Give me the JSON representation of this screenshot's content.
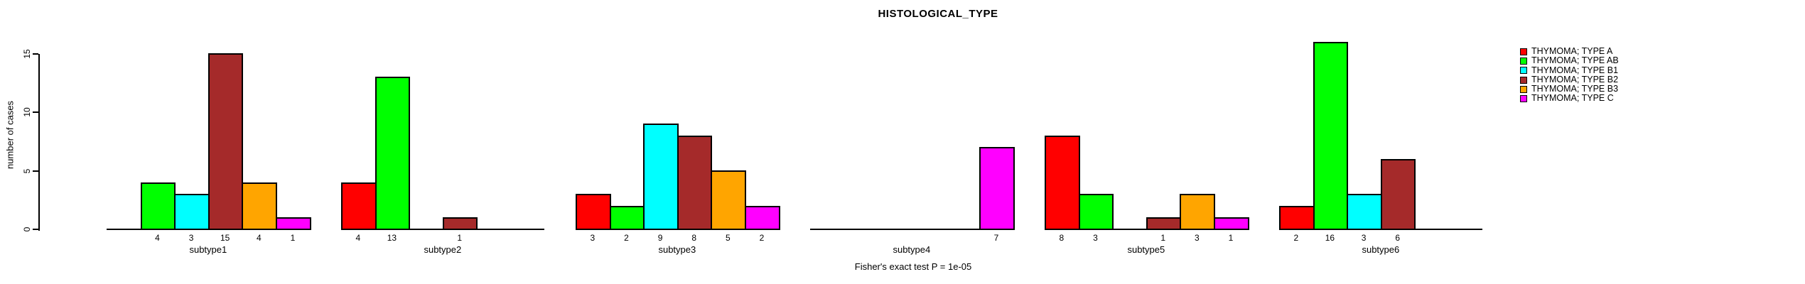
{
  "title": "HISTOLOGICAL_TYPE",
  "chart_data": {
    "type": "bar",
    "title": "HISTOLOGICAL_TYPE",
    "ylabel": "number of cases",
    "xlabel": "",
    "footnote": "Fisher's exact test P = 1e-05",
    "ylim": [
      0,
      16
    ],
    "yticks": [
      0,
      5,
      10,
      15
    ],
    "grid": false,
    "legend_position": "top-right",
    "bar_value_labels": true,
    "categories": [
      "subtype1",
      "subtype2",
      "subtype3",
      "subtype4",
      "subtype5",
      "subtype6"
    ],
    "series": [
      {
        "name": "THYMOMA; TYPE A",
        "color": "#FF0000",
        "values": [
          0,
          4,
          3,
          0,
          8,
          2
        ]
      },
      {
        "name": "THYMOMA; TYPE AB",
        "color": "#00FF00",
        "values": [
          4,
          13,
          2,
          0,
          3,
          16
        ]
      },
      {
        "name": "THYMOMA; TYPE B1",
        "color": "#00FFFF",
        "values": [
          3,
          0,
          9,
          0,
          0,
          3
        ]
      },
      {
        "name": "THYMOMA; TYPE B2",
        "color": "#A52A2A",
        "values": [
          15,
          1,
          8,
          0,
          1,
          6
        ]
      },
      {
        "name": "THYMOMA; TYPE B3",
        "color": "#FFA500",
        "values": [
          4,
          0,
          5,
          0,
          3,
          0
        ]
      },
      {
        "name": "THYMOMA; TYPE C",
        "color": "#FF00FF",
        "values": [
          1,
          0,
          2,
          7,
          1,
          0
        ]
      }
    ]
  }
}
